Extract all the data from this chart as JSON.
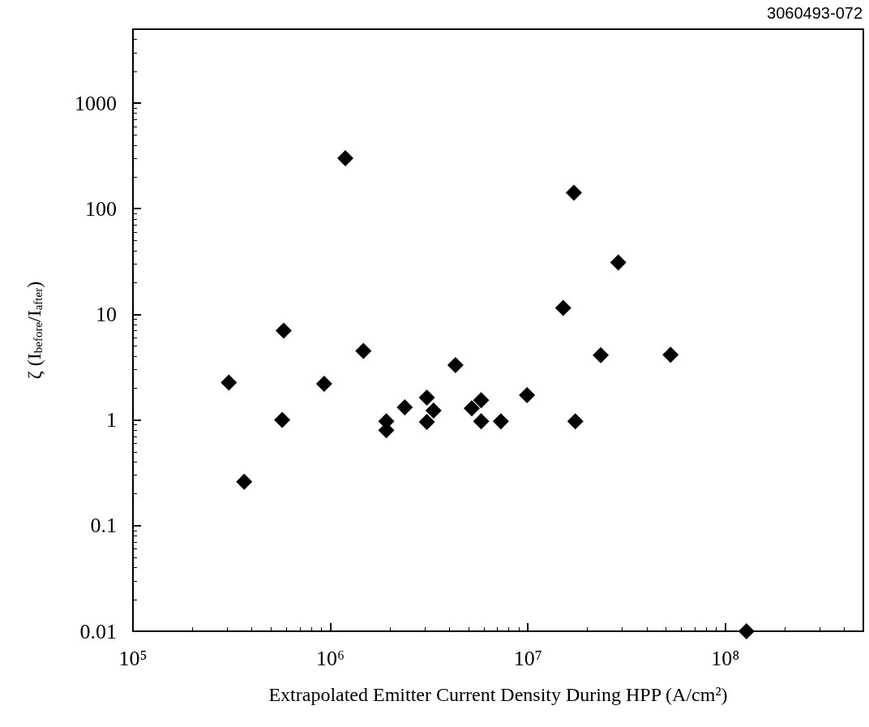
{
  "chart_data": {
    "type": "scatter",
    "xlabel": "Extrapolated Emitter Current Density During HPP (A/cm²)",
    "ylabel": "ζ (I$_{before}$/I$_{after}$)",
    "annotations": [
      "3060493-072"
    ],
    "x": [
      1190000.0,
      580000.0,
      1470000.0,
      4300000.0,
      306000.0,
      930000.0,
      570000.0,
      1920000.0,
      1920000.0,
      2380000.0,
      3080000.0,
      3330000.0,
      3080000.0,
      5200000.0,
      5800000.0,
      5800000.0,
      7300000.0,
      366000.0,
      17100000.0,
      28700000.0,
      15100000.0,
      23400000.0,
      52800000.0,
      9900000.0,
      17400000.0,
      128000000.0
    ],
    "values": [
      300,
      7,
      4.5,
      3.3,
      2.26,
      2.2,
      1.0,
      0.97,
      0.8,
      1.32,
      1.63,
      1.23,
      0.96,
      1.29,
      1.54,
      0.97,
      0.97,
      0.26,
      142,
      31,
      11.5,
      4.1,
      4.15,
      1.72,
      0.97,
      0.01
    ],
    "color": "#000000",
    "marker": "diamond",
    "log": "xy",
    "grid": false,
    "xlim": [
      100000.0,
      500000000.0
    ],
    "xticks": [
      {
        "value": 100000.0,
        "label": "10⁵"
      },
      {
        "value": 1000000.0,
        "label": "10⁶"
      },
      {
        "value": 10000000.0,
        "label": "10⁷"
      },
      {
        "value": 100000000.0,
        "label": "10⁸"
      }
    ],
    "ylim": [
      0.01,
      5000
    ],
    "yticks": [
      0.01,
      0.1,
      1,
      10,
      100,
      1000
    ]
  }
}
